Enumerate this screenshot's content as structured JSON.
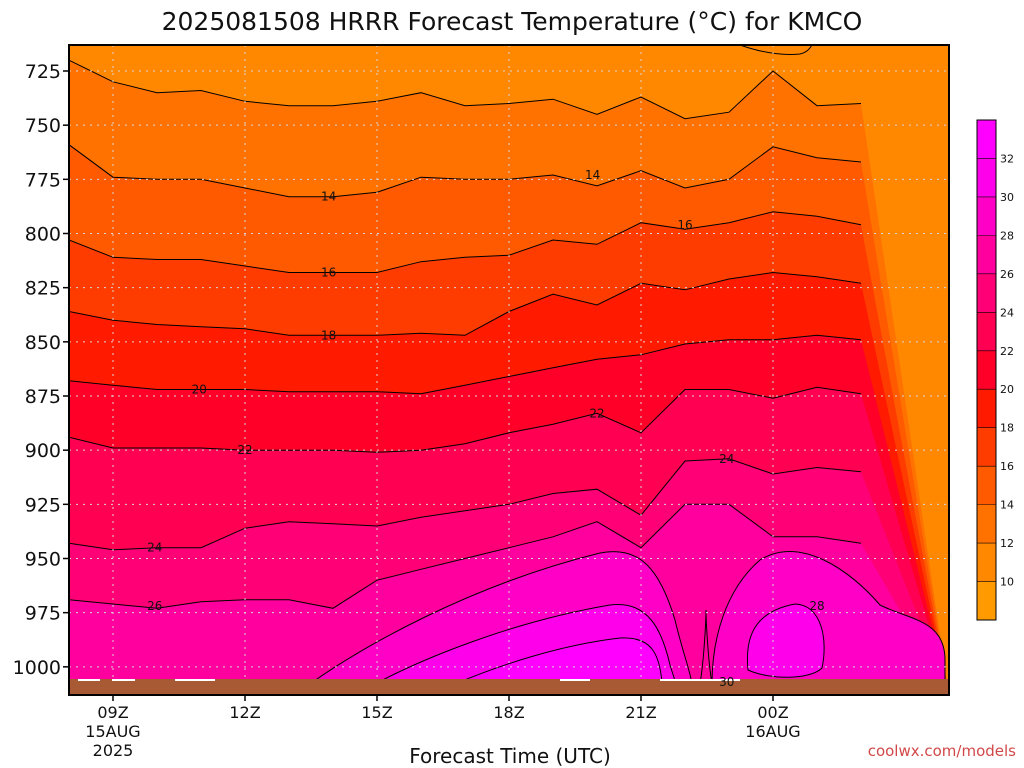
{
  "chart_data": {
    "type": "contour",
    "title": "2025081508 HRRR Forecast Temperature (°C) for KMCO",
    "xlabel": "Forecast Time (UTC)",
    "ylabel": "",
    "y_axis": {
      "reversed": true,
      "ylim": [
        1013,
        713
      ],
      "ticks": [
        "725",
        "750",
        "775",
        "800",
        "825",
        "850",
        "875",
        "900",
        "925",
        "950",
        "975",
        "1000"
      ]
    },
    "x_axis": {
      "xlim": [
        8,
        28
      ],
      "ticks": [
        {
          "x": 9,
          "label": "09Z",
          "sub1": "15AUG",
          "sub2": "2025"
        },
        {
          "x": 12,
          "label": "12Z",
          "sub1": "",
          "sub2": ""
        },
        {
          "x": 15,
          "label": "15Z",
          "sub1": "",
          "sub2": ""
        },
        {
          "x": 18,
          "label": "18Z",
          "sub1": "",
          "sub2": ""
        },
        {
          "x": 21,
          "label": "21Z",
          "sub1": "",
          "sub2": ""
        },
        {
          "x": 24,
          "label": "00Z",
          "sub1": "16AUG",
          "sub2": ""
        }
      ]
    },
    "grid": true,
    "colorbar": {
      "range": [
        8,
        34
      ],
      "ticks": [
        "10",
        "12",
        "14",
        "16",
        "18",
        "20",
        "22",
        "24",
        "26",
        "28",
        "30",
        "32"
      ]
    },
    "colors": {
      "8": "#ff9b00",
      "10": "#ff8800",
      "12": "#ff7200",
      "14": "#ff5a00",
      "16": "#ff3c00",
      "18": "#ff1a00",
      "20": "#ff0028",
      "22": "#ff0052",
      "24": "#ff0076",
      "26": "#ff009e",
      "28": "#ff00c6",
      "30": "#ff00ea",
      "32": "#ff00ff"
    },
    "contours": [
      {
        "value": 12,
        "x": [
          8.0,
          9.0,
          10.0,
          11.0,
          12.0,
          13.0,
          14.0,
          15.0,
          16.0,
          17.0,
          18.0,
          19.0,
          20.0,
          21.0,
          22.0,
          23.0,
          24.0,
          25.0,
          26.0
        ],
        "p": [
          720,
          730,
          735,
          734,
          739,
          741,
          741,
          739,
          735,
          741,
          740,
          738,
          745,
          737,
          747,
          744,
          725,
          741,
          740
        ]
      },
      {
        "value": 14,
        "x": [
          8.0,
          9.0,
          10.0,
          11.0,
          12.0,
          13.0,
          14.0,
          15.0,
          16.0,
          17.0,
          18.0,
          19.0,
          20.0,
          21.0,
          22.0,
          23.0,
          24.0,
          25.0,
          26.0
        ],
        "p": [
          759,
          774,
          775,
          775,
          779,
          783,
          783,
          781,
          774,
          775,
          775,
          773,
          778,
          771,
          779,
          775,
          760,
          765,
          767
        ]
      },
      {
        "value": 16,
        "x": [
          8.0,
          9.0,
          10.0,
          11.0,
          12.0,
          13.0,
          14.0,
          15.0,
          16.0,
          17.0,
          18.0,
          19.0,
          20.0,
          21.0,
          22.0,
          23.0,
          24.0,
          25.0,
          26.0
        ],
        "p": [
          803,
          811,
          812,
          812,
          815,
          818,
          818,
          818,
          813,
          811,
          810,
          803,
          805,
          795,
          798,
          795,
          790,
          792,
          796
        ]
      },
      {
        "value": 18,
        "x": [
          8.0,
          9.0,
          10.0,
          11.0,
          12.0,
          13.0,
          14.0,
          15.0,
          16.0,
          17.0,
          18.0,
          19.0,
          20.0,
          21.0,
          22.0,
          23.0,
          24.0,
          25.0,
          26.0
        ],
        "p": [
          836,
          840,
          842,
          843,
          844,
          847,
          847,
          847,
          846,
          847,
          836,
          828,
          833,
          823,
          826,
          821,
          818,
          820,
          823
        ]
      },
      {
        "value": 20,
        "x": [
          8.0,
          9.0,
          10.0,
          11.0,
          12.0,
          13.0,
          14.0,
          15.0,
          16.0,
          17.0,
          18.0,
          19.0,
          20.0,
          21.0,
          22.0,
          23.0,
          24.0,
          25.0,
          26.0
        ],
        "p": [
          868,
          870,
          872,
          872,
          872,
          873,
          873,
          873,
          874,
          870,
          866,
          862,
          858,
          856,
          851,
          849,
          849,
          847,
          849
        ]
      },
      {
        "value": 22,
        "x": [
          8.0,
          9.0,
          10.0,
          11.0,
          12.0,
          13.0,
          14.0,
          15.0,
          16.0,
          17.0,
          18.0,
          19.0,
          20.0,
          21.0,
          22.0,
          23.0,
          24.0,
          25.0,
          26.0
        ],
        "p": [
          894,
          899,
          899,
          899,
          900,
          900,
          900,
          901,
          900,
          897,
          892,
          888,
          883,
          892,
          872,
          872,
          876,
          871,
          874
        ]
      },
      {
        "value": 24,
        "x": [
          8.0,
          9.0,
          10.0,
          11.0,
          12.0,
          13.0,
          14.0,
          15.0,
          16.0,
          17.0,
          18.0,
          19.0,
          20.0,
          21.0,
          22.0,
          23.0,
          24.0,
          25.0,
          26.0
        ],
        "p": [
          943,
          946,
          945,
          945,
          936,
          933,
          934,
          935,
          931,
          928,
          925,
          920,
          918,
          930,
          905,
          904,
          911,
          908,
          910
        ]
      },
      {
        "value": 26,
        "x": [
          8.0,
          9.0,
          10.0,
          11.0,
          12.0,
          13.0,
          14.0,
          15.0,
          16.0,
          17.0,
          18.0,
          19.0,
          20.0,
          21.0,
          22.0,
          23.0,
          24.0,
          25.0,
          26.0
        ],
        "p": [
          969,
          971,
          973,
          970,
          969,
          969,
          973,
          960,
          955,
          950,
          945,
          940,
          933,
          945,
          925,
          925,
          940,
          940,
          943
        ]
      }
    ],
    "contour_labels": [
      {
        "value": "14",
        "x": 13.9,
        "p": 783
      },
      {
        "value": "14",
        "x": 19.9,
        "p": 773
      },
      {
        "value": "16",
        "x": 13.9,
        "p": 818
      },
      {
        "value": "16",
        "x": 22.0,
        "p": 796
      },
      {
        "value": "18",
        "x": 13.9,
        "p": 847
      },
      {
        "value": "20",
        "x": 10.96,
        "p": 872
      },
      {
        "value": "22",
        "x": 12.0,
        "p": 900
      },
      {
        "value": "22",
        "x": 20.0,
        "p": 883
      },
      {
        "value": "24",
        "x": 9.95,
        "p": 945
      },
      {
        "value": "24",
        "x": 22.95,
        "p": 904
      },
      {
        "value": "26",
        "x": 9.95,
        "p": 972
      },
      {
        "value": "28",
        "x": 25.0,
        "p": 972
      },
      {
        "value": "30",
        "x": 22.95,
        "p": 1007
      }
    ]
  },
  "credit": "coolwx.com/models"
}
